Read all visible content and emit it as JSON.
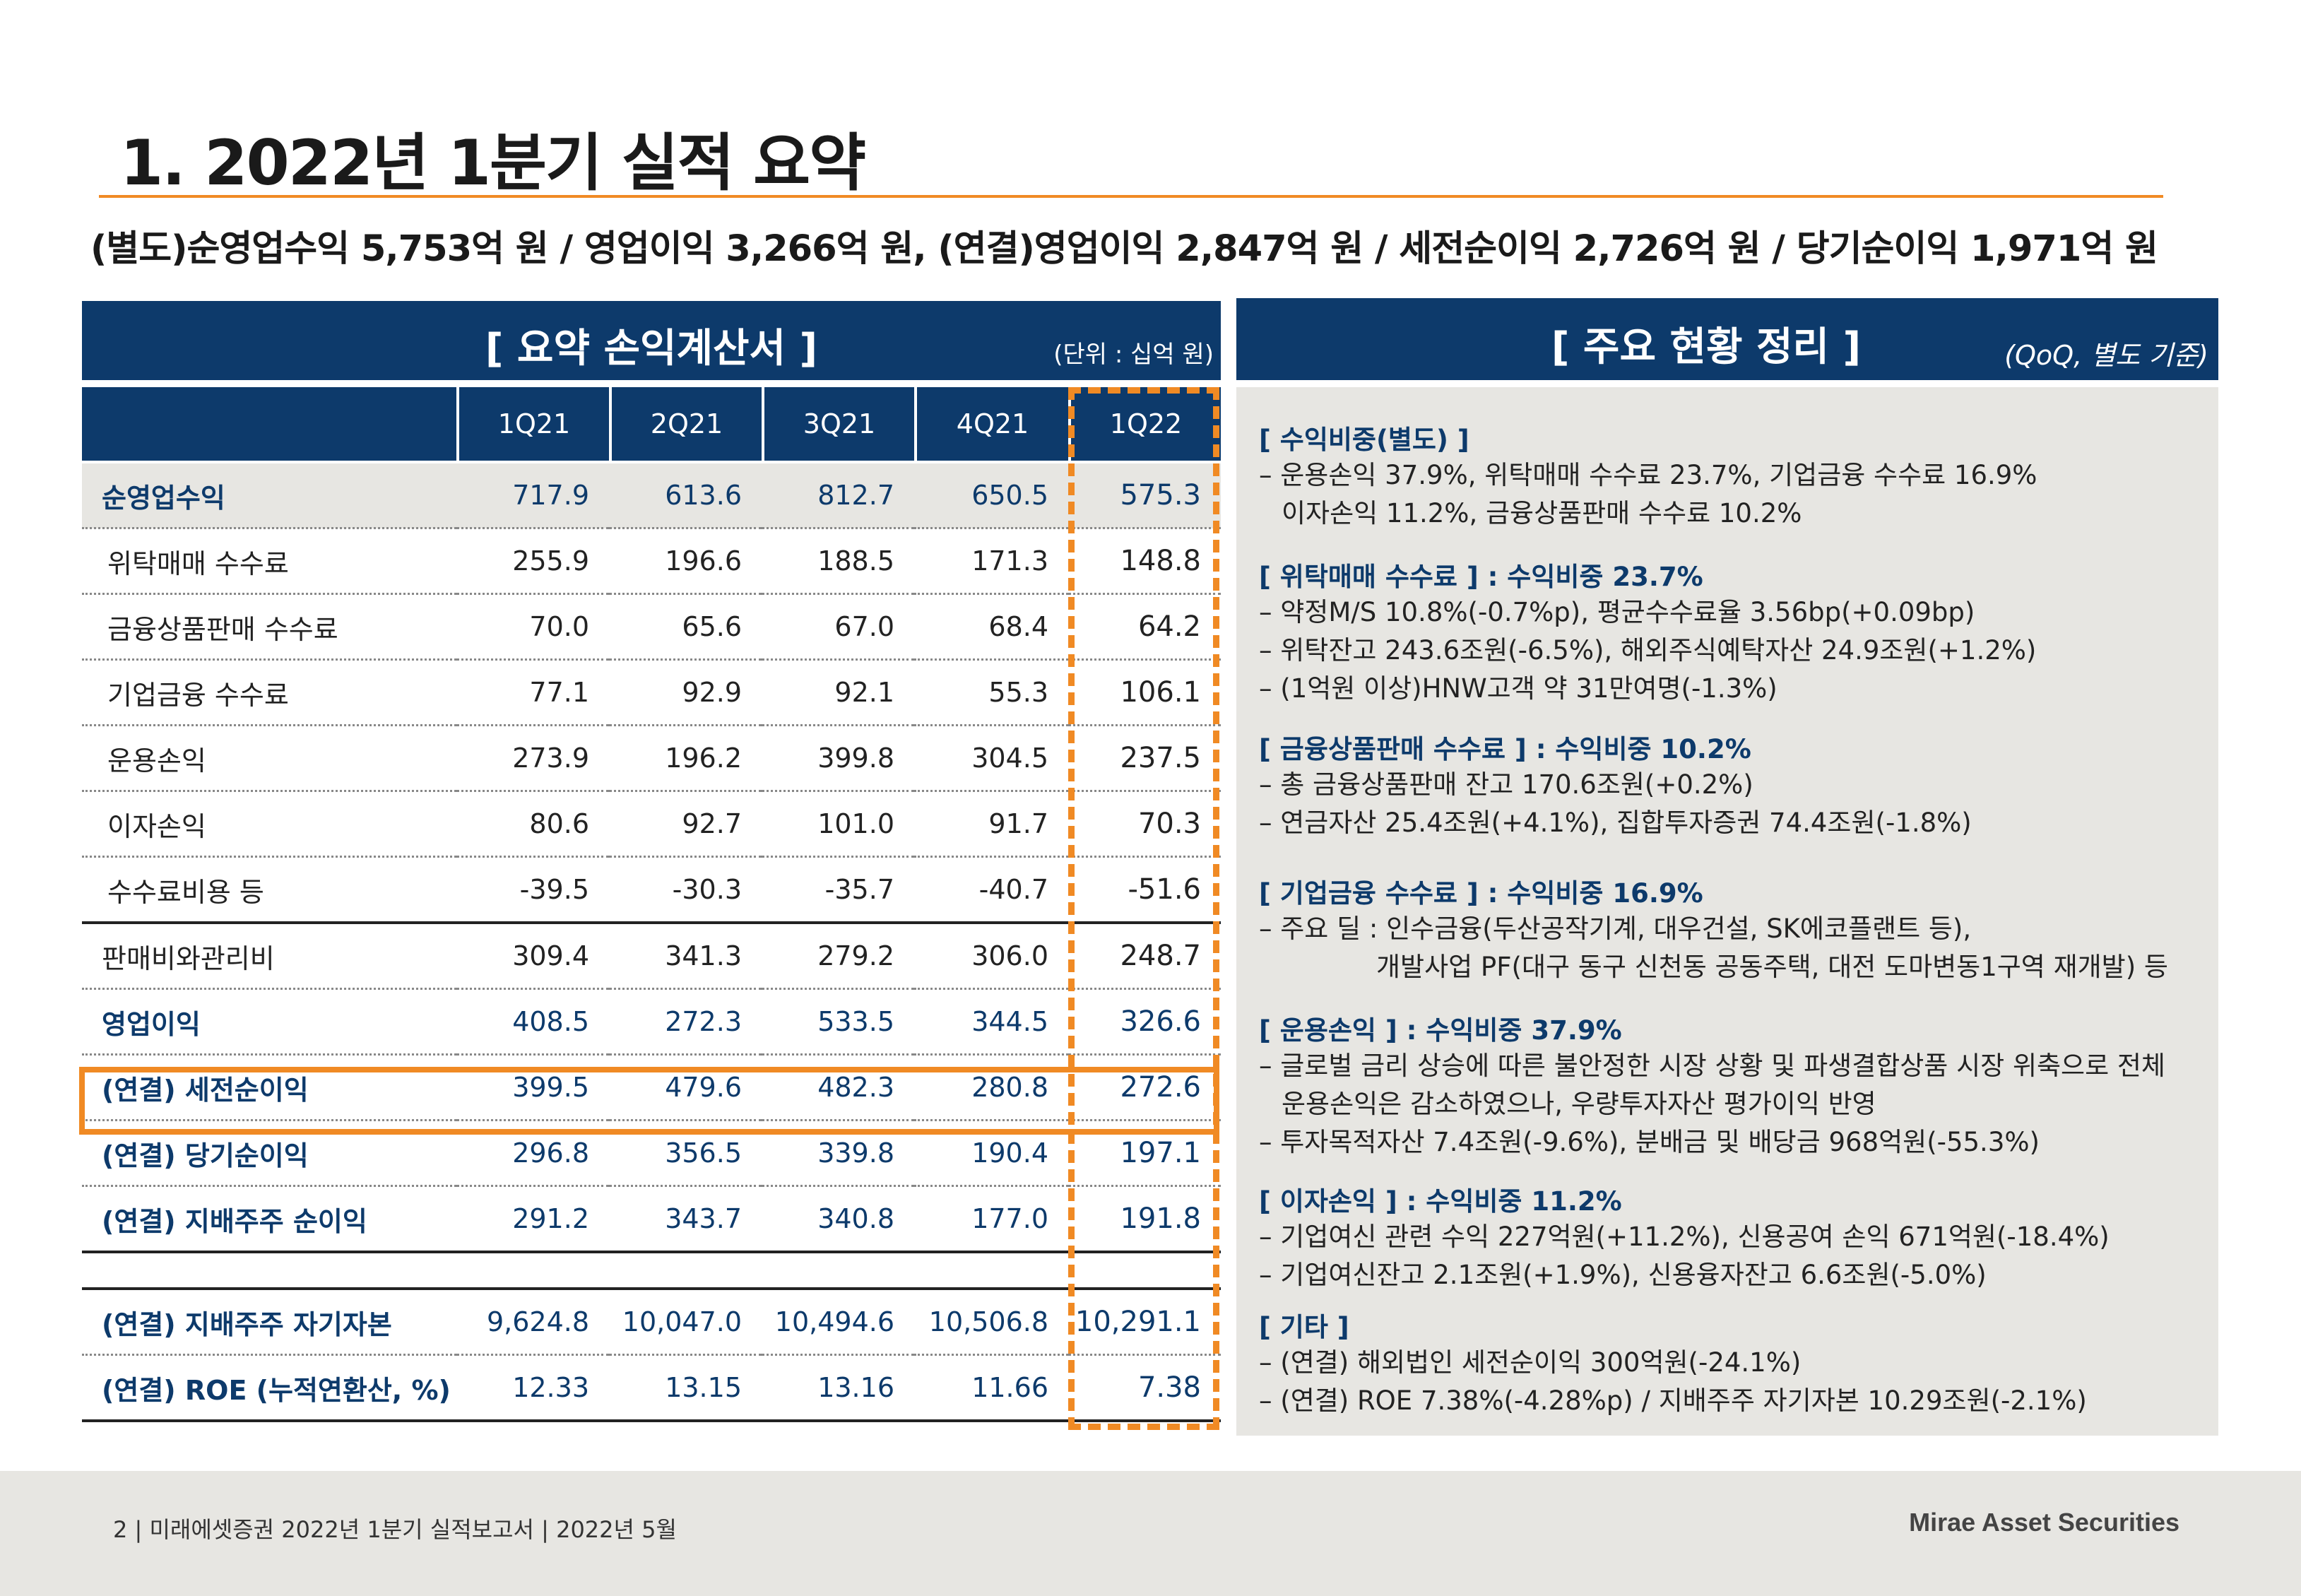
{
  "title": "1. 2022년 1분기 실적 요약",
  "subtitle": "(별도)순영업수익 5,753억 원 / 영업이익 3,266억 원, (연결)영업이익 2,847억 원 / 세전순이익 2,726억 원 / 당기순이익 1,971억 원",
  "left_panel": {
    "title": "[ 요약 손익계산서 ]",
    "unit": "(단위 : 십억 원)",
    "columns": [
      "1Q21",
      "2Q21",
      "3Q21",
      "4Q21",
      "1Q22"
    ],
    "rows": [
      {
        "label": "순영업수익",
        "values": [
          "717.9",
          "613.6",
          "812.7",
          "650.5",
          "575.3"
        ]
      },
      {
        "label": "위탁매매 수수료",
        "values": [
          "255.9",
          "196.6",
          "188.5",
          "171.3",
          "148.8"
        ]
      },
      {
        "label": "금융상품판매 수수료",
        "values": [
          "70.0",
          "65.6",
          "67.0",
          "68.4",
          "64.2"
        ]
      },
      {
        "label": "기업금융 수수료",
        "values": [
          "77.1",
          "92.9",
          "92.1",
          "55.3",
          "106.1"
        ]
      },
      {
        "label": "운용손익",
        "values": [
          "273.9",
          "196.2",
          "399.8",
          "304.5",
          "237.5"
        ]
      },
      {
        "label": "이자손익",
        "values": [
          "80.6",
          "92.7",
          "101.0",
          "91.7",
          "70.3"
        ]
      },
      {
        "label": "수수료비용 등",
        "values": [
          "-39.5",
          "-30.3",
          "-35.7",
          "-40.7",
          "-51.6"
        ]
      },
      {
        "label": "판매비와관리비",
        "values": [
          "309.4",
          "341.3",
          "279.2",
          "306.0",
          "248.7"
        ]
      },
      {
        "label": "영업이익",
        "values": [
          "408.5",
          "272.3",
          "533.5",
          "344.5",
          "326.6"
        ]
      },
      {
        "label": "(연결) 세전순이익",
        "values": [
          "399.5",
          "479.6",
          "482.3",
          "280.8",
          "272.6"
        ]
      },
      {
        "label": "(연결) 당기순이익",
        "values": [
          "296.8",
          "356.5",
          "339.8",
          "190.4",
          "197.1"
        ]
      },
      {
        "label": "(연결) 지배주주 순이익",
        "values": [
          "291.2",
          "343.7",
          "340.8",
          "177.0",
          "191.8"
        ]
      },
      {
        "label": "(연결) 지배주주 자기자본",
        "values": [
          "9,624.8",
          "10,047.0",
          "10,494.6",
          "10,506.8",
          "10,291.1"
        ]
      },
      {
        "label": "(연결) ROE (누적연환산, %)",
        "values": [
          "12.33",
          "13.15",
          "13.16",
          "11.66",
          "7.38"
        ]
      }
    ]
  },
  "right_panel": {
    "title": "[ 주요 현황 정리 ]",
    "note": "(QoQ, 별도 기준)",
    "sections": [
      {
        "heading": "[ 수익비중(별도) ]",
        "lines": [
          "– 운용손익 37.9%, 위탁매매 수수료 23.7%, 기업금융 수수료 16.9%",
          "이자손익 11.2%, 금융상품판매 수수료 10.2%"
        ]
      },
      {
        "heading": "[ 위탁매매 수수료 ] : 수익비중 23.7%",
        "lines": [
          "– 약정M/S 10.8%(-0.7%p), 평균수수료율 3.56bp(+0.09bp)",
          "– 위탁잔고 243.6조원(-6.5%), 해외주식예탁자산 24.9조원(+1.2%)",
          "– (1억원 이상)HNW고객 약 31만여명(-1.3%)"
        ]
      },
      {
        "heading": "[ 금융상품판매 수수료 ] : 수익비중 10.2%",
        "lines": [
          "– 총 금융상품판매 잔고 170.6조원(+0.2%)",
          "– 연금자산 25.4조원(+4.1%), 집합투자증권 74.4조원(-1.8%)"
        ]
      },
      {
        "heading": "[ 기업금융 수수료 ] : 수익비중 16.9%",
        "lines": [
          "– 주요 딜 : 인수금융(두산공작기계, 대우건설, SK에코플랜트 등),",
          "개발사업 PF(대구 동구 신천동 공동주택, 대전 도마변동1구역 재개발) 등"
        ]
      },
      {
        "heading": "[ 운용손익 ] : 수익비중 37.9%",
        "lines": [
          "– 글로벌 금리 상승에 따른 불안정한 시장 상황 및 파생결합상품 시장 위축으로 전체",
          "운용손익은 감소하였으나, 우량투자자산 평가이익 반영",
          "– 투자목적자산 7.4조원(-9.6%), 분배금 및 배당금 968억원(-55.3%)"
        ]
      },
      {
        "heading": "[ 이자손익 ] : 수익비중 11.2%",
        "lines": [
          "– 기업여신 관련 수익 227억원(+11.2%), 신용공여 손익 671억원(-18.4%)",
          "– 기업여신잔고 2.1조원(+1.9%), 신용융자잔고 6.6조원(-5.0%)"
        ]
      },
      {
        "heading": "[ 기타 ]",
        "lines": [
          "– (연결) 해외법인 세전순이익 300억원(-24.1%)",
          "– (연결) ROE 7.38%(-4.28%p) / 지배주주 자기자본 10.29조원(-2.1%)"
        ]
      }
    ]
  },
  "footer": {
    "left": "2 | 미래에셋증권 2022년 1분기 실적보고서 | 2022년 5월",
    "right": "Mirae Asset Securities"
  }
}
